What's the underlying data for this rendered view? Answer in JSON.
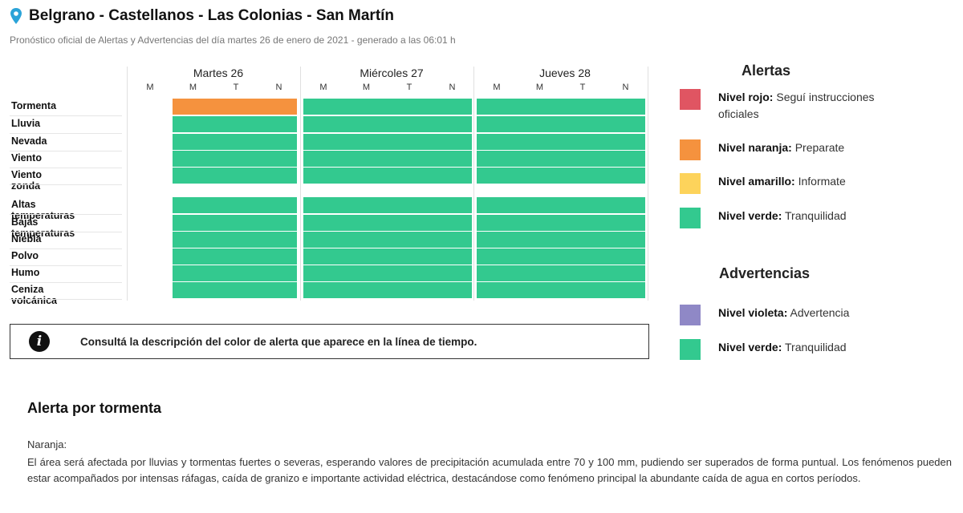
{
  "header": {
    "title": "Belgrano - Castellanos - Las Colonias - San Martín",
    "subtitle": "Pronóstico oficial de Alertas y Advertencias del día martes 26 de enero de 2021 - generado a las 06:01 h"
  },
  "timeline": {
    "days": [
      {
        "label": "Martes 26",
        "slots": [
          "M",
          "M",
          "T",
          "N"
        ]
      },
      {
        "label": "Miércoles 27",
        "slots": [
          "M",
          "M",
          "T",
          "N"
        ]
      },
      {
        "label": "Jueves 28",
        "slots": [
          "M",
          "M",
          "T",
          "N"
        ]
      }
    ],
    "rows": [
      {
        "label": "Tormenta",
        "day_levels": [
          "naranja",
          "verde",
          "verde"
        ]
      },
      {
        "label": "Lluvia",
        "day_levels": [
          "verde",
          "verde",
          "verde"
        ]
      },
      {
        "label": "Nevada",
        "day_levels": [
          "verde",
          "verde",
          "verde"
        ]
      },
      {
        "label": "Viento",
        "day_levels": [
          "verde",
          "verde",
          "verde"
        ]
      },
      {
        "label": "Viento zonda",
        "day_levels": [
          "verde",
          "verde",
          "verde"
        ]
      },
      {
        "label": "Altas temperaturas",
        "day_levels": [
          "verde",
          "verde",
          "verde"
        ]
      },
      {
        "label": "Bajas temperaturas",
        "day_levels": [
          "verde",
          "verde",
          "verde"
        ]
      },
      {
        "label": "Niebla",
        "day_levels": [
          "verde",
          "verde",
          "verde"
        ]
      },
      {
        "label": "Polvo",
        "day_levels": [
          "verde",
          "verde",
          "verde"
        ]
      },
      {
        "label": "Humo",
        "day_levels": [
          "verde",
          "verde",
          "verde"
        ]
      },
      {
        "label": "Ceniza volcánica",
        "day_levels": [
          "verde",
          "verde",
          "verde"
        ]
      }
    ]
  },
  "info": {
    "text": "Consultá la descripción del color de alerta que aparece en la línea de tiempo.",
    "icon": "info-icon"
  },
  "legend": {
    "alerts_title": "Alertas",
    "alerts": [
      {
        "bold": "Nivel rojo:",
        "text": " Seguí instrucciones oficiales",
        "color": "#e05562"
      },
      {
        "bold": "Nivel naranja:",
        "text": " Preparate",
        "color": "#f5923e"
      },
      {
        "bold": "Nivel amarillo:",
        "text": " Informate",
        "color": "#fdd35b"
      },
      {
        "bold": "Nivel verde:",
        "text": " Tranquilidad",
        "color": "#33c98f"
      }
    ],
    "warnings_title": "Advertencias",
    "warnings": [
      {
        "bold": "Nivel violeta:",
        "text": " Advertencia",
        "color": "#8f88c6"
      },
      {
        "bold": "Nivel verde:",
        "text": " Tranquilidad",
        "color": "#33c98f"
      }
    ]
  },
  "colors": {
    "naranja": "#f5923e",
    "verde": "#33c98f",
    "pin": "#2aa3d8"
  },
  "description": {
    "title": "Alerta por tormenta",
    "level": "Naranja:",
    "body": "El área será afectada por lluvias y tormentas fuertes o severas, esperando valores de precipitación acumulada entre 70 y 100 mm, pudiendo ser superados de forma puntual. Los fenómenos pueden estar acompañados por intensas ráfagas, caída de granizo e importante actividad eléctrica, destacándose como fenómeno principal la abundante caída de agua en cortos períodos."
  }
}
